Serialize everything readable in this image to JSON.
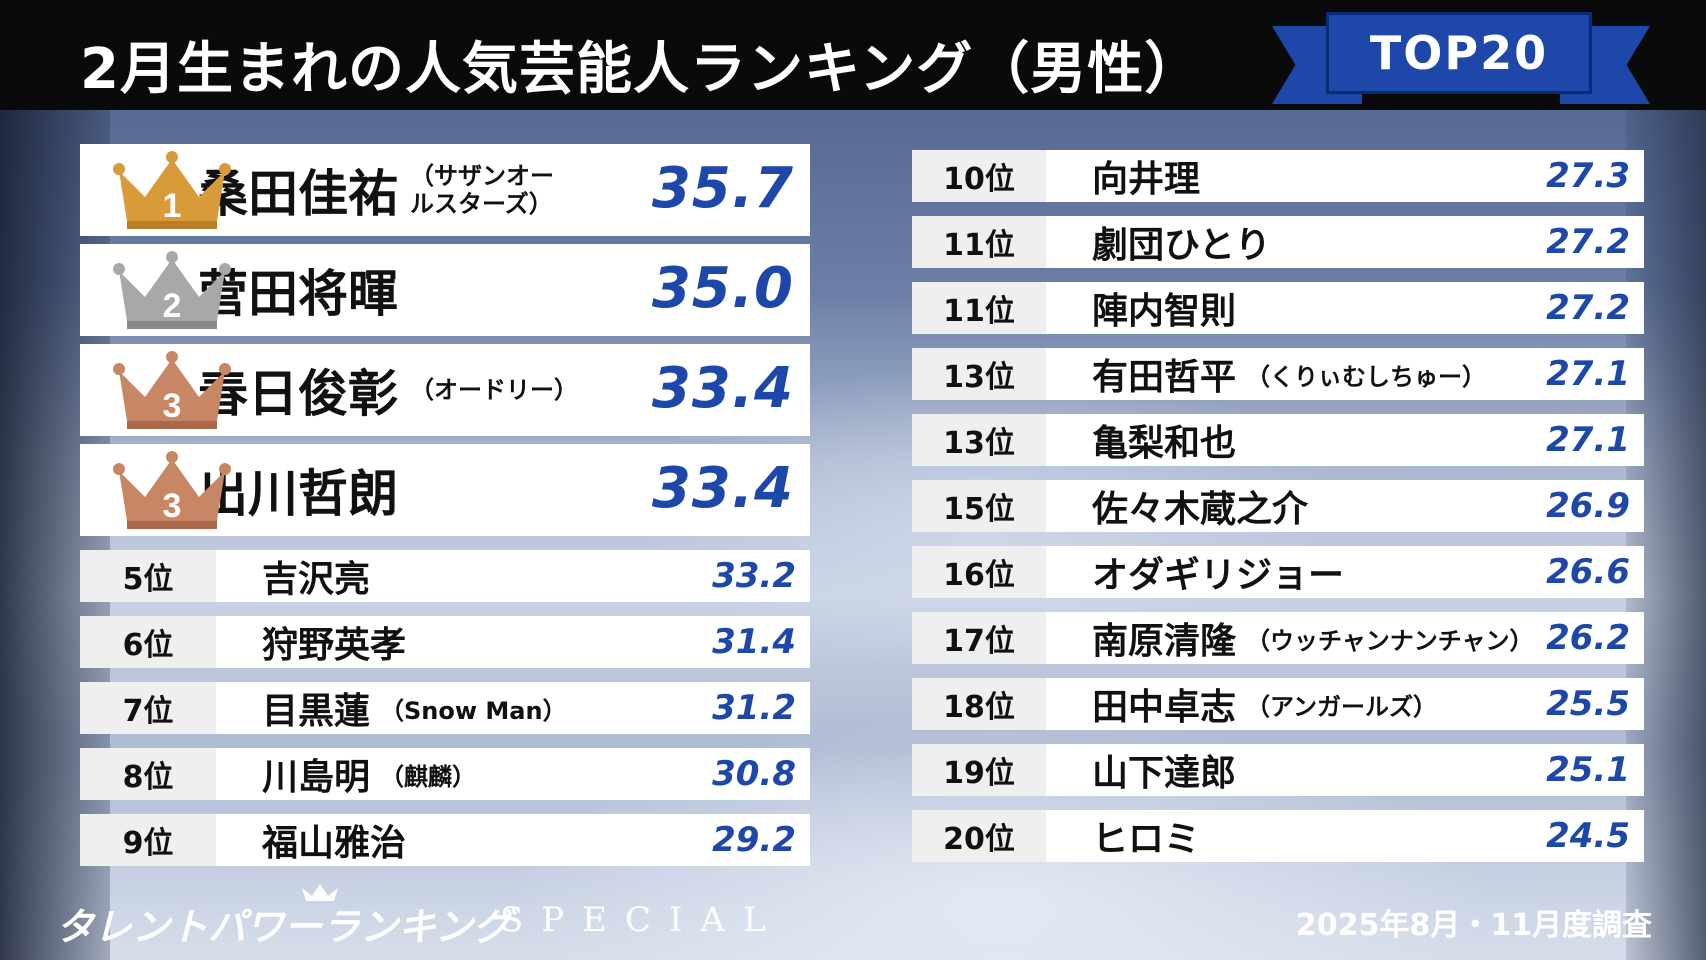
{
  "header": {
    "title": "2月生まれの人気芸能人ランキング（男性）",
    "badge": "TOP20"
  },
  "colors": {
    "accent_blue": "#1d47a8",
    "gold": "#d99a3a",
    "silver": "#a8a8a8",
    "bronze": "#c88764"
  },
  "top": [
    {
      "crown": "gold",
      "rank_num": "1",
      "name": "桑田佳祐",
      "sub_line1": "（サザンオー",
      "sub_line2": "ルスターズ）",
      "score": "35.7"
    },
    {
      "crown": "silver",
      "rank_num": "2",
      "name": "菅田将暉",
      "sub_line1": "",
      "sub_line2": "",
      "score": "35.0"
    },
    {
      "crown": "bronze",
      "rank_num": "3",
      "name": "春日俊彰",
      "sub_line1": "（オードリー）",
      "sub_line2": "",
      "score": "33.4"
    },
    {
      "crown": "bronze",
      "rank_num": "3",
      "name": "出川哲朗",
      "sub_line1": "",
      "sub_line2": "",
      "score": "33.4"
    }
  ],
  "left": [
    {
      "rank": "5位",
      "name": "吉沢亮",
      "sub": "",
      "score": "33.2"
    },
    {
      "rank": "6位",
      "name": "狩野英孝",
      "sub": "",
      "score": "31.4"
    },
    {
      "rank": "7位",
      "name": "目黒蓮",
      "sub": "（Snow Man）",
      "score": "31.2"
    },
    {
      "rank": "8位",
      "name": "川島明",
      "sub": "（麒麟）",
      "score": "30.8"
    },
    {
      "rank": "9位",
      "name": "福山雅治",
      "sub": "",
      "score": "29.2"
    }
  ],
  "right": [
    {
      "rank": "10位",
      "name": "向井理",
      "sub": "",
      "score": "27.3"
    },
    {
      "rank": "11位",
      "name": "劇団ひとり",
      "sub": "",
      "score": "27.2"
    },
    {
      "rank": "11位",
      "name": "陣内智則",
      "sub": "",
      "score": "27.2"
    },
    {
      "rank": "13位",
      "name": "有田哲平",
      "sub": "（くりぃむしちゅー）",
      "score": "27.1"
    },
    {
      "rank": "13位",
      "name": "亀梨和也",
      "sub": "",
      "score": "27.1"
    },
    {
      "rank": "15位",
      "name": "佐々木蔵之介",
      "sub": "",
      "score": "26.9"
    },
    {
      "rank": "16位",
      "name": "オダギリジョー",
      "sub": "",
      "score": "26.6"
    },
    {
      "rank": "17位",
      "name": "南原清隆",
      "sub": "（ウッチャンナンチャン）",
      "score": "26.2"
    },
    {
      "rank": "18位",
      "name": "田中卓志",
      "sub": "（アンガールズ）",
      "score": "25.5"
    },
    {
      "rank": "19位",
      "name": "山下達郎",
      "sub": "",
      "score": "25.1"
    },
    {
      "rank": "20位",
      "name": "ヒロミ",
      "sub": "",
      "score": "24.5"
    }
  ],
  "footer": {
    "logo": "タレントパワーランキング",
    "special": "SPECIAL",
    "survey": "2025年8月・11月度調査"
  }
}
